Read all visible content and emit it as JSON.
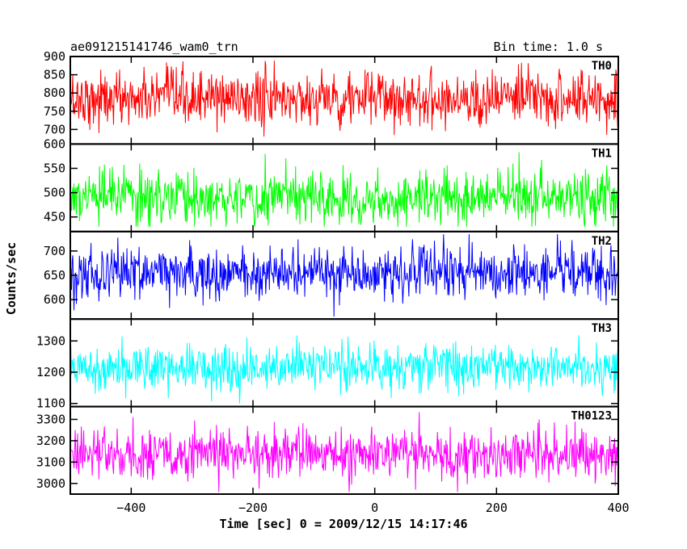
{
  "header": {
    "title": "ae091215141746_wam0_trn",
    "bin_time": "Bin time: 1.0 s"
  },
  "chart_data": {
    "type": "line",
    "xlabel": "Time [sec] 0 = 2009/12/15 14:17:46",
    "ylabel": "Counts/sec",
    "xlim": [
      -500,
      400
    ],
    "x_ticks": [
      -400,
      -200,
      0,
      200,
      400
    ],
    "x_tick_labels": [
      "−400",
      "−200",
      "0",
      "200",
      "400"
    ],
    "x_range": [
      -500,
      400
    ],
    "bin_time_s": 1.0,
    "grid": false,
    "series": [
      {
        "name": "TH0",
        "color": "#ff0000",
        "ylim": [
          660,
          900
        ],
        "y_ticks": [
          700,
          750,
          800,
          850,
          900
        ],
        "y_tick_labels": [
          "700",
          "750",
          "800",
          "850",
          "900"
        ],
        "mean": 785,
        "spread": 38,
        "min": 660,
        "max": 900
      },
      {
        "name": "TH1",
        "color": "#00ff00",
        "ylim": [
          420,
          600
        ],
        "y_ticks": [
          450,
          500,
          550,
          600
        ],
        "y_tick_labels": [
          "450",
          "500",
          "550",
          "600"
        ],
        "mean": 490,
        "spread": 28,
        "min": 430,
        "max": 590
      },
      {
        "name": "TH2",
        "color": "#0000ff",
        "ylim": [
          560,
          740
        ],
        "y_ticks": [
          600,
          650,
          700
        ],
        "y_tick_labels": [
          "600",
          "650",
          "700"
        ],
        "mean": 655,
        "spread": 27,
        "min": 565,
        "max": 740
      },
      {
        "name": "TH3",
        "color": "#00ffff",
        "ylim": [
          1090,
          1370
        ],
        "y_ticks": [
          1100,
          1200,
          1300
        ],
        "y_tick_labels": [
          "1100",
          "1200",
          "1300"
        ],
        "mean": 1218,
        "spread": 38,
        "min": 1100,
        "max": 1360
      },
      {
        "name": "TH0123",
        "color": "#ff00ff",
        "ylim": [
          2950,
          3360
        ],
        "y_ticks": [
          3000,
          3100,
          3200,
          3300
        ],
        "y_tick_labels": [
          "3000",
          "3100",
          "3200",
          "3300"
        ],
        "mean": 3138,
        "spread": 60,
        "min": 2960,
        "max": 3350
      }
    ]
  }
}
